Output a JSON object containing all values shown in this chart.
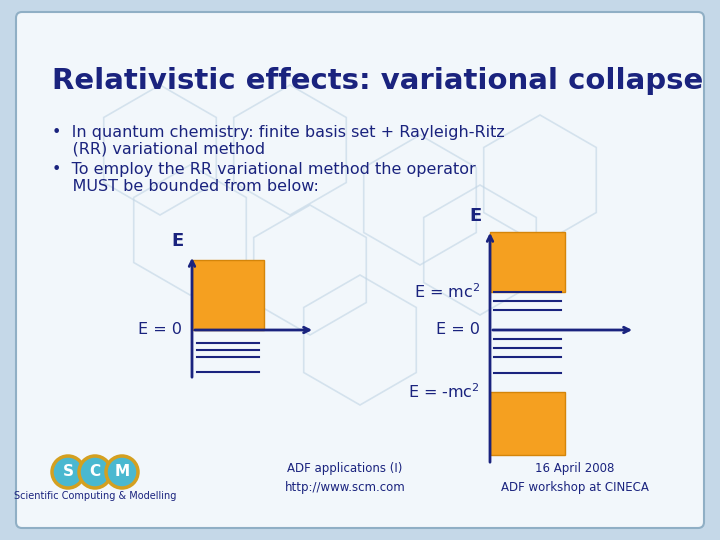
{
  "title": "Relativistic effects: variational collapse",
  "bullet1_prefix": "•  In quantum chemistry: finite basis set + Rayleigh-Ritz",
  "bullet1_line2": "    (RR) variational method",
  "bullet2_prefix": "•  To employ the RR variational method the operator",
  "bullet2_line2": "    MUST be bounded from below:",
  "bg_color": "#c5d8e8",
  "inner_bg": "#f2f7fb",
  "title_color": "#1a237e",
  "body_color": "#1a237e",
  "orange_color": "#f5a020",
  "orange_edge": "#d4850a",
  "axis_color": "#1a237e",
  "line_color": "#1a237e",
  "hex_color": "#c0d4e4",
  "footer_text1": "ADF applications (I)\nhttp://www.scm.com",
  "footer_text2": "16 April 2008\nADF workshop at CINECA",
  "scm_circle_color": "#4ab8d0",
  "scm_ring_color": "#d4a020"
}
